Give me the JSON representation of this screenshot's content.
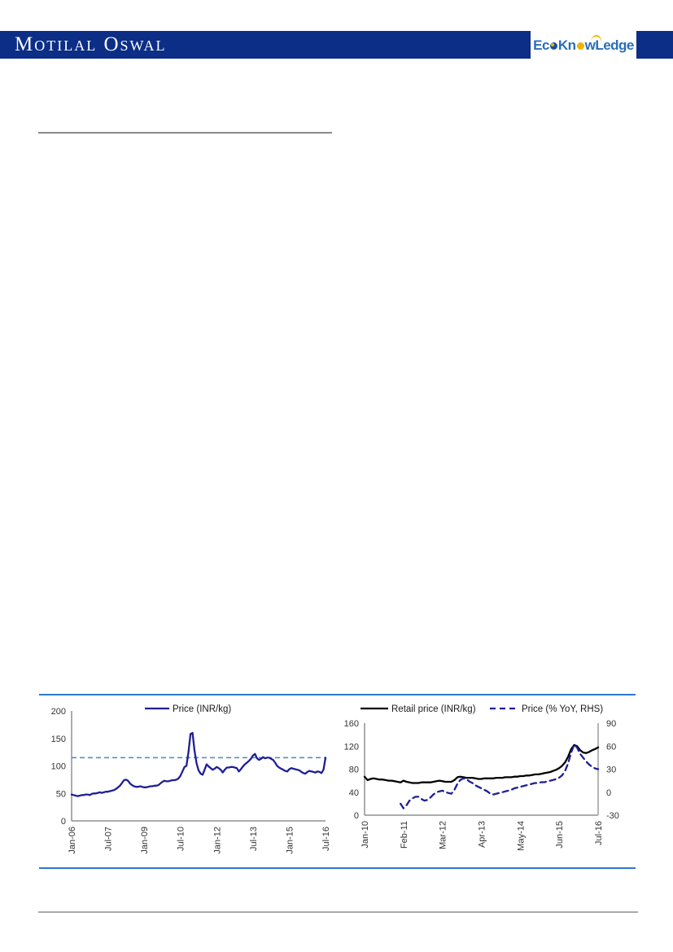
{
  "header": {
    "brand": "Motilal Oswal",
    "logo": {
      "p1": "Ec",
      "p2": "Kn",
      "p3": "w",
      "p4": "Ledge"
    }
  },
  "colors": {
    "header_bar": "#0c2e86",
    "navy_line": "#1f1f96",
    "black_line": "#000000",
    "reference_dash": "#4a86c8",
    "section_rule_blue": "#2e78cf",
    "rule_gray": "#8a8a8a"
  },
  "chart_data": [
    {
      "type": "line",
      "title": "",
      "legend_position": "top",
      "x_ticks": [
        "Jan-06",
        "Jul-07",
        "Jan-09",
        "Jul-10",
        "Jan-12",
        "Jul-13",
        "Jan-15",
        "Jul-16"
      ],
      "x_tick_months": [
        0,
        18,
        36,
        54,
        72,
        90,
        108,
        126
      ],
      "x_total_months": 126,
      "ylim_left": [
        0,
        200
      ],
      "y_ticks_left": [
        0,
        50,
        100,
        150,
        200
      ],
      "reference_line": {
        "value": 115,
        "color": "#4a86c8"
      },
      "series": [
        {
          "name": "Price (INR/kg)",
          "color": "#1f1f96",
          "dash": false,
          "axis": "left",
          "start_month": 0,
          "values": [
            48,
            47,
            46,
            45,
            46,
            47,
            47,
            48,
            48,
            47,
            49,
            50,
            50,
            51,
            52,
            51,
            52,
            53,
            53,
            54,
            55,
            56,
            58,
            61,
            64,
            69,
            74,
            75,
            73,
            68,
            65,
            63,
            62,
            62,
            63,
            62,
            61,
            61,
            62,
            63,
            63,
            64,
            64,
            65,
            68,
            71,
            73,
            72,
            72,
            73,
            74,
            74,
            75,
            77,
            82,
            90,
            98,
            100,
            125,
            158,
            160,
            128,
            105,
            92,
            86,
            84,
            93,
            103,
            99,
            96,
            93,
            95,
            98,
            96,
            93,
            88,
            93,
            97,
            97,
            98,
            98,
            97,
            96,
            90,
            94,
            99,
            103,
            106,
            109,
            113,
            119,
            122,
            114,
            111,
            113,
            116,
            114,
            115,
            115,
            113,
            111,
            106,
            100,
            97,
            95,
            93,
            91,
            90,
            94,
            96,
            95,
            94,
            93,
            92,
            89,
            87,
            86,
            89,
            91,
            90,
            89,
            88,
            90,
            89,
            87,
            93,
            115
          ]
        }
      ]
    },
    {
      "type": "line",
      "title": "",
      "legend_position": "top",
      "x_ticks": [
        "Jan-10",
        "Feb-11",
        "Mar-12",
        "Apr-13",
        "May-14",
        "Jun-15",
        "Jul-16"
      ],
      "x_tick_months": [
        0,
        13,
        26,
        39,
        52,
        65,
        78
      ],
      "x_total_months": 78,
      "ylim_left": [
        0,
        160
      ],
      "y_ticks_left": [
        0,
        40,
        80,
        120,
        160
      ],
      "ylim_right": [
        -30,
        90
      ],
      "y_ticks_right": [
        -30,
        0,
        30,
        60,
        90
      ],
      "series": [
        {
          "name": "Retail price (INR/kg)",
          "color": "#000000",
          "dash": false,
          "axis": "left",
          "start_month": 0,
          "values": [
            67,
            61,
            63,
            64,
            63,
            62,
            62,
            61,
            60,
            60,
            59,
            58,
            57,
            60,
            58,
            57,
            56,
            56,
            56,
            57,
            57,
            57,
            57,
            58,
            59,
            60,
            59,
            58,
            58,
            58,
            61,
            66,
            67,
            66,
            65,
            65,
            65,
            64,
            63,
            63,
            64,
            64,
            64,
            64,
            65,
            65,
            65,
            66,
            66,
            66,
            67,
            67,
            68,
            68,
            69,
            69,
            70,
            71,
            71,
            72,
            73,
            74,
            75,
            77,
            79,
            82,
            86,
            92,
            102,
            115,
            122,
            120,
            113,
            109,
            108,
            110,
            113,
            115,
            118
          ]
        },
        {
          "name": "Price (% YoY, RHS)",
          "color": "#1f1f96",
          "dash": true,
          "axis": "right",
          "start_month": 12,
          "values": [
            -15,
            -21,
            -17,
            -11,
            -8,
            -6,
            -6,
            -9,
            -11,
            -10,
            -7,
            -3,
            0,
            1,
            2,
            0,
            -1,
            -2,
            3,
            11,
            16,
            18,
            17,
            14,
            12,
            9,
            7,
            5,
            3,
            1,
            -2,
            -3,
            -2,
            -1,
            0,
            1,
            2,
            3,
            5,
            6,
            7,
            8,
            9,
            10,
            11,
            12,
            12,
            13,
            13,
            14,
            15,
            16,
            17,
            19,
            22,
            28,
            38,
            52,
            62,
            58,
            50,
            45,
            40,
            36,
            33,
            31,
            30
          ]
        }
      ]
    }
  ]
}
